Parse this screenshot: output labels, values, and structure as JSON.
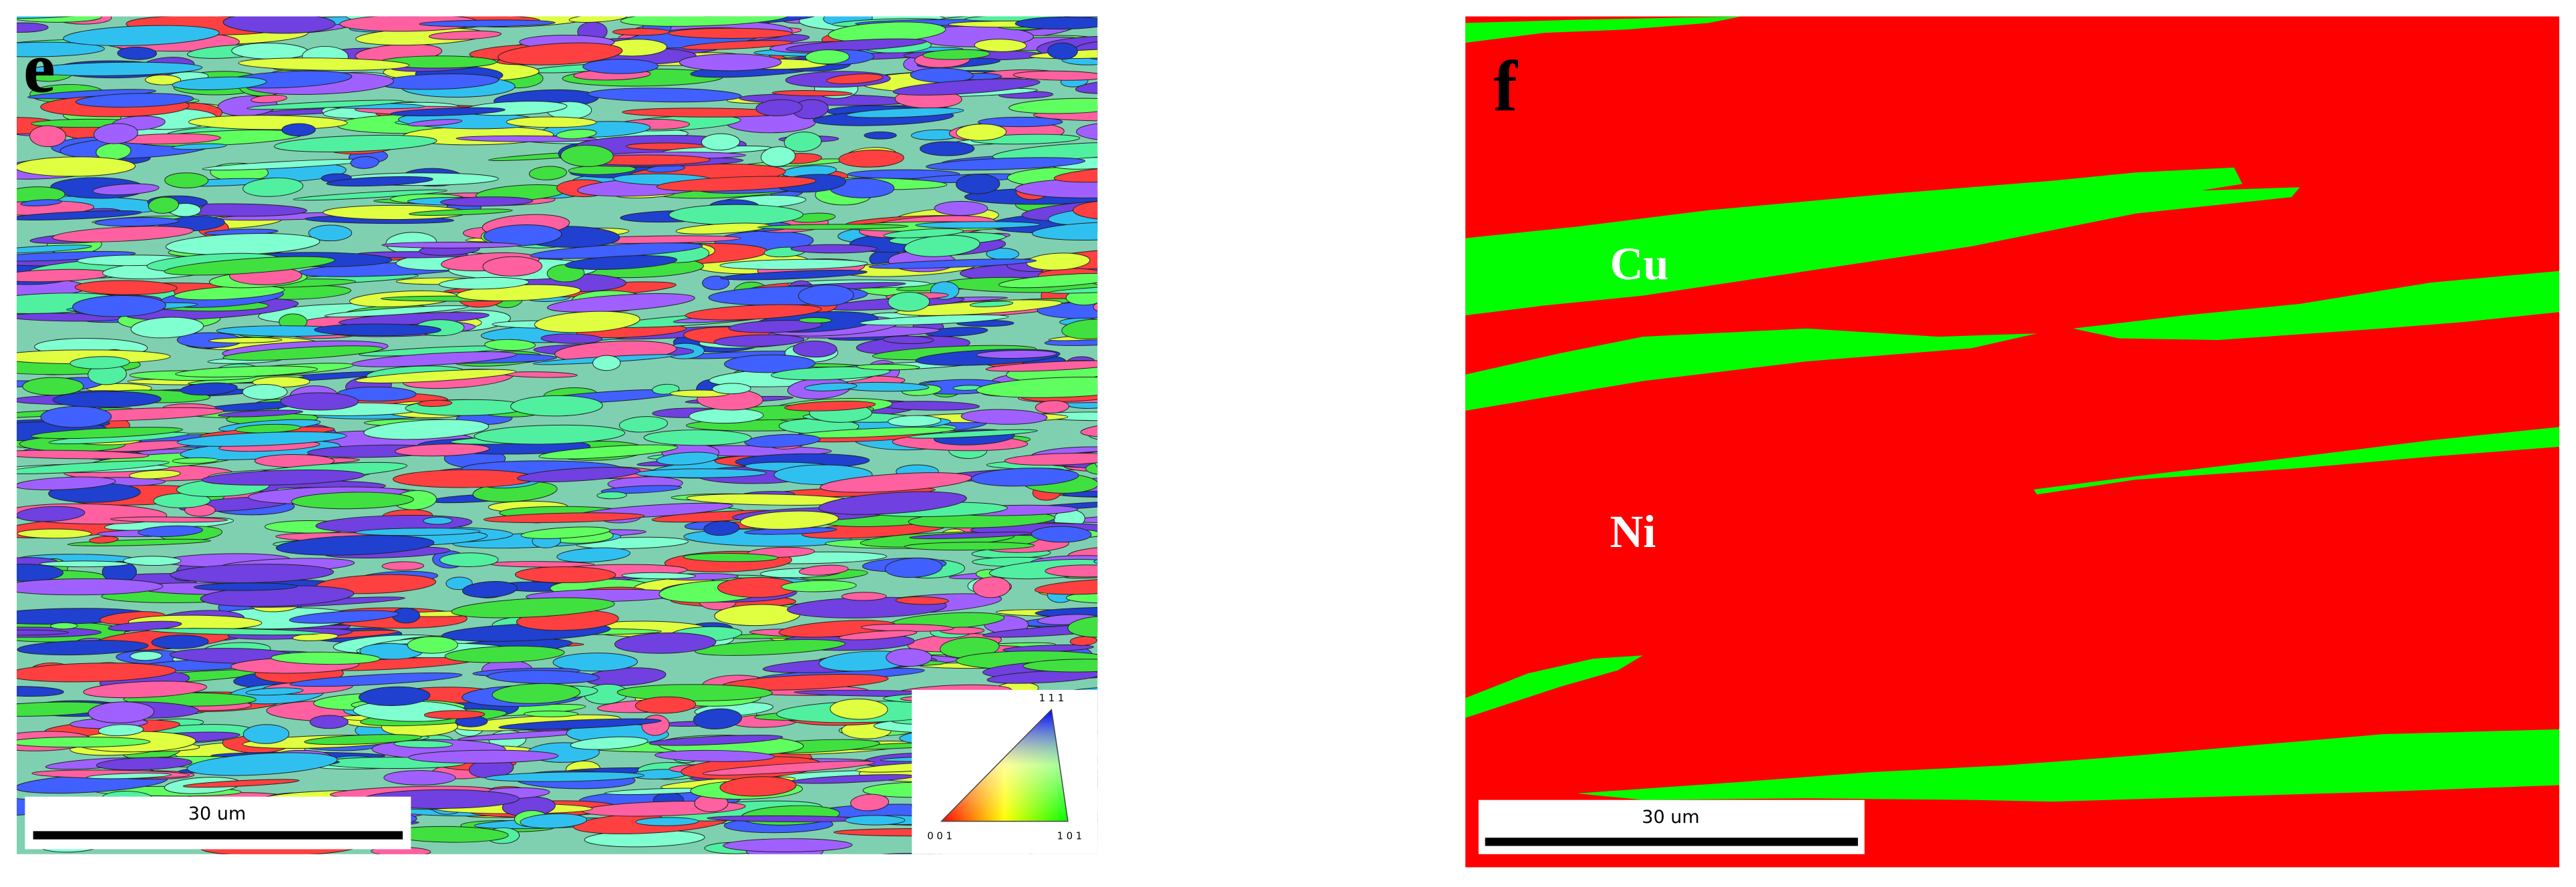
{
  "panels": [
    {
      "label": "e",
      "scale_bar": "30 um",
      "ipf_key": {
        "top": "1 1 1",
        "left": "0 0 1",
        "right": "1 0 1"
      }
    },
    {
      "label": "f",
      "scale_bar": "30 um",
      "phases": [
        "Cu",
        "Ni"
      ]
    }
  ]
}
